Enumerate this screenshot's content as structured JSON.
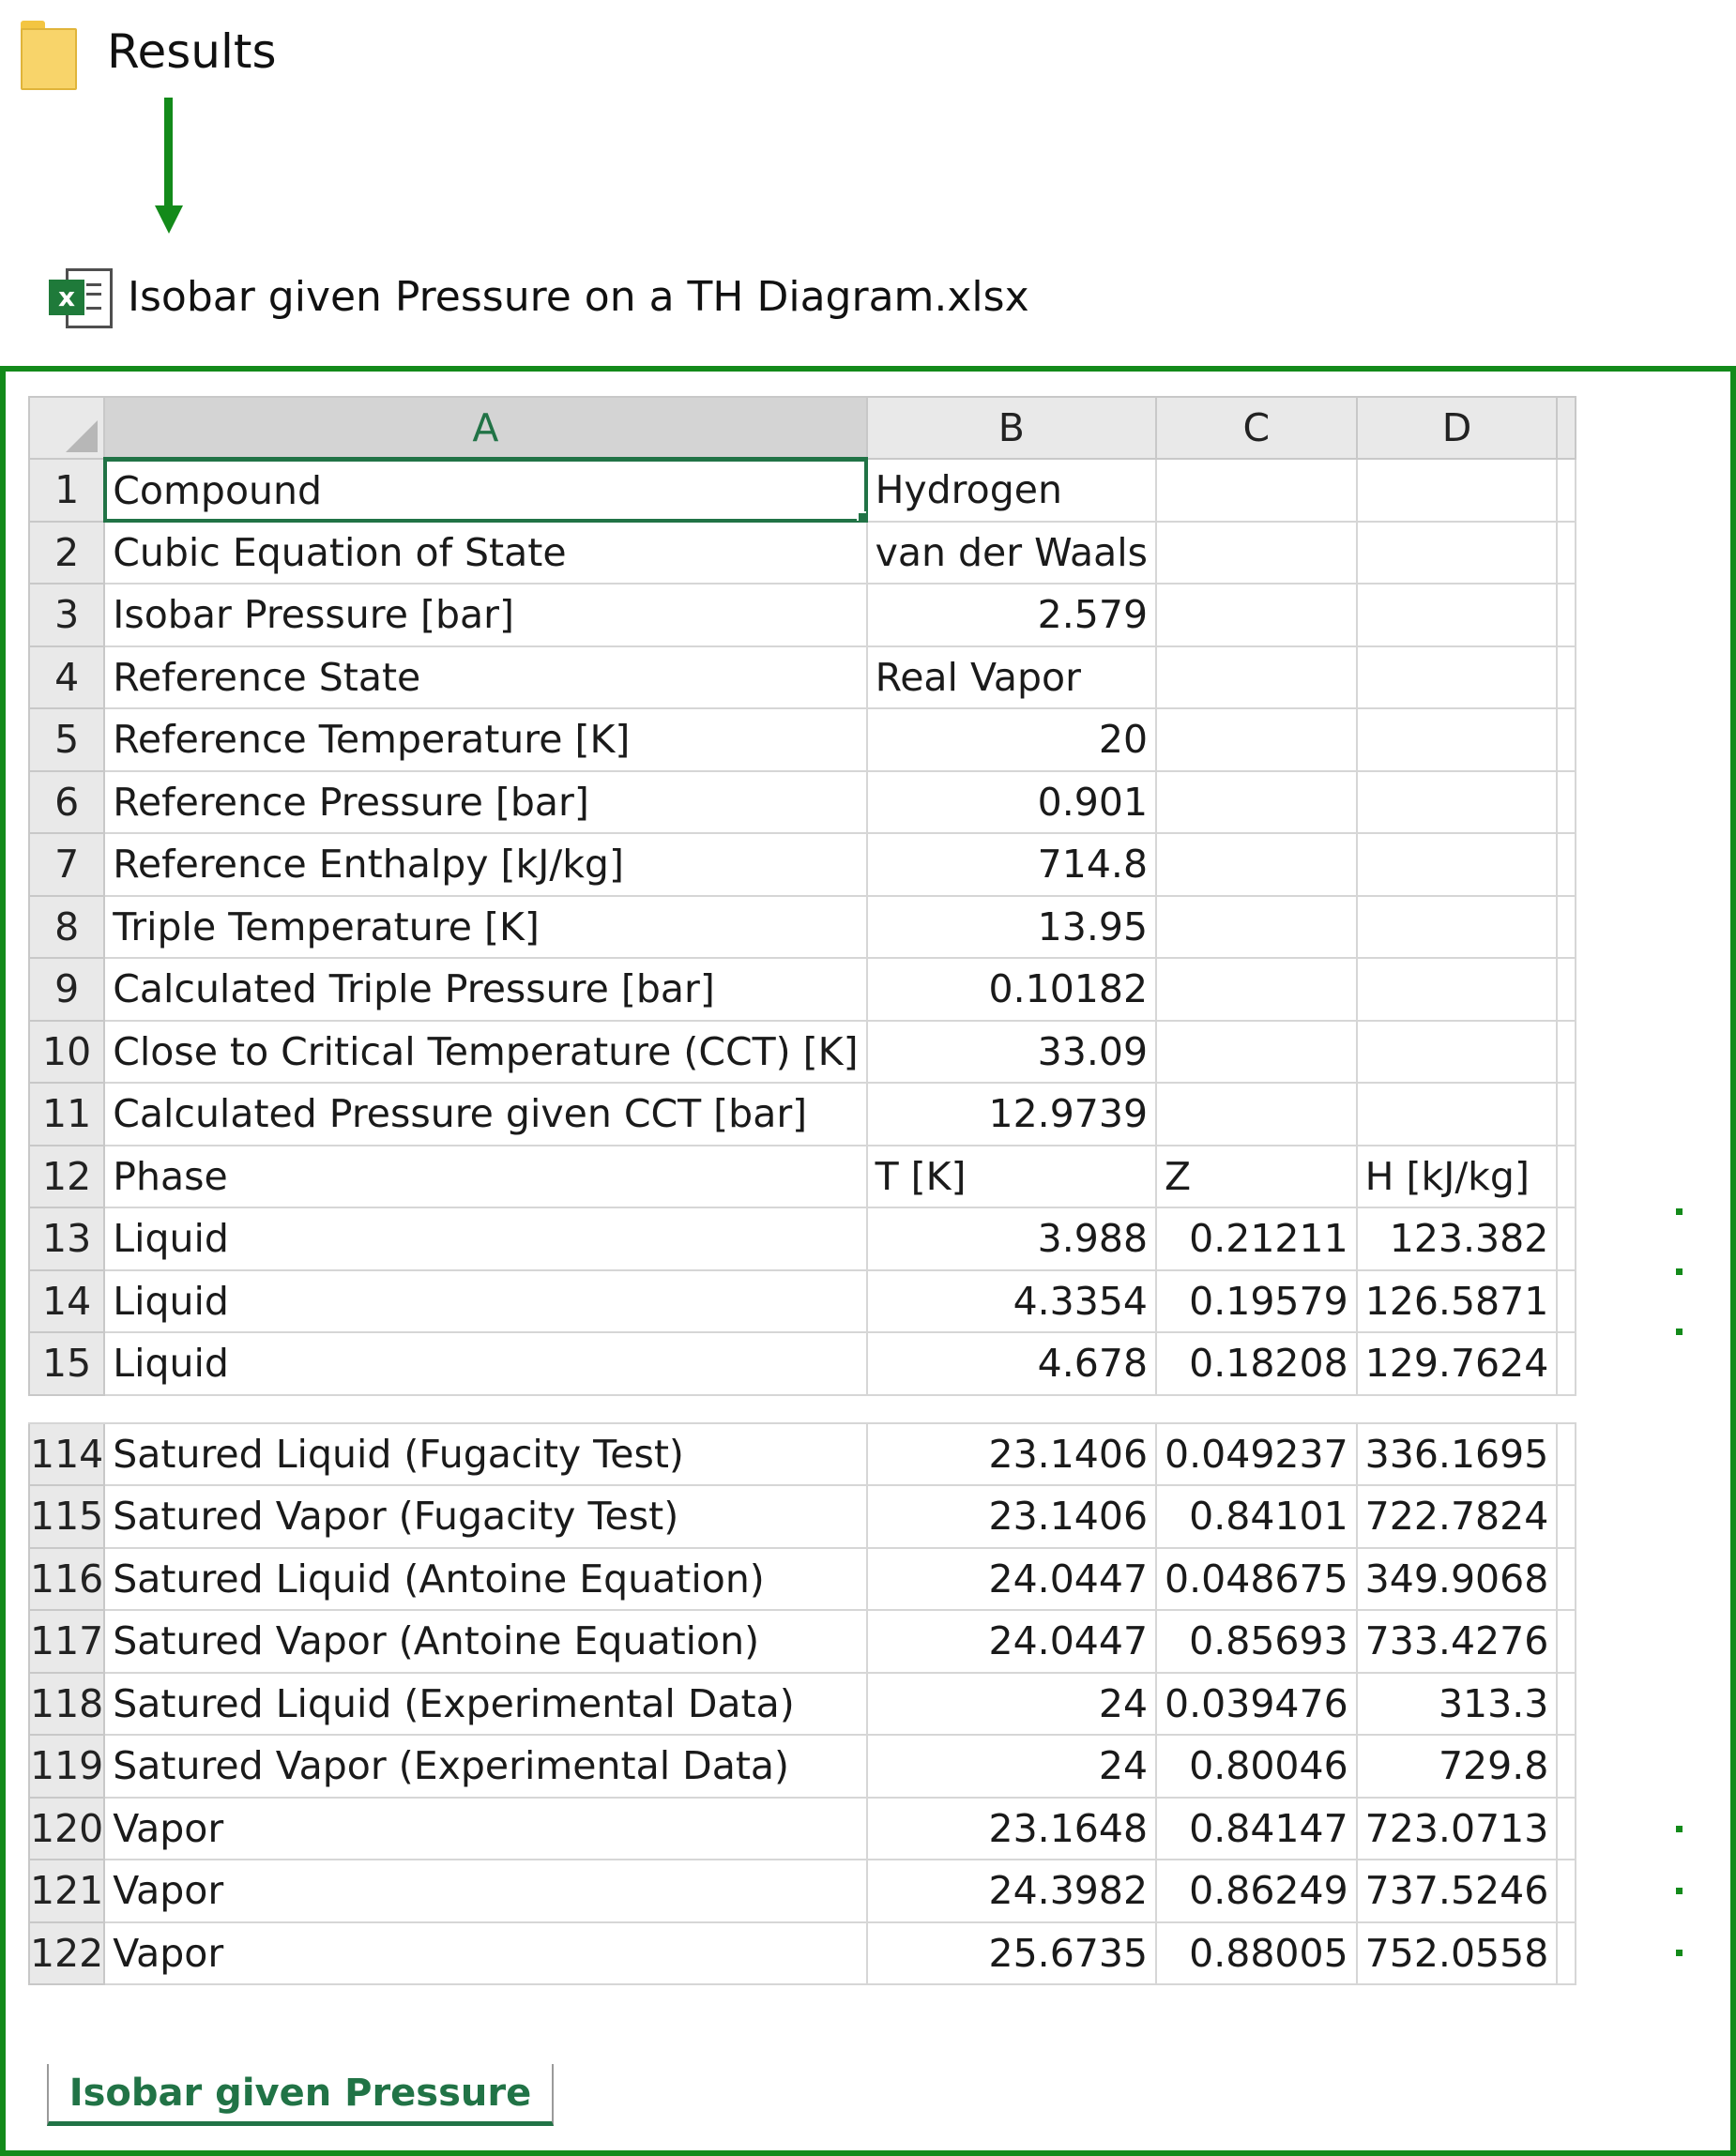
{
  "folder": {
    "label": "Results",
    "icon": "folder-icon"
  },
  "file": {
    "label": "Isobar given Pressure on a TH Diagram.xlsx",
    "icon": "excel-file-icon"
  },
  "spreadsheet": {
    "columns": [
      "A",
      "B",
      "C",
      "D"
    ],
    "rows": [
      {
        "n": "1",
        "a": "Compound",
        "b": "Hydrogen",
        "c": "",
        "d": ""
      },
      {
        "n": "2",
        "a": "Cubic Equation of State",
        "b": "van der Waals",
        "c": "",
        "d": ""
      },
      {
        "n": "3",
        "a": "Isobar Pressure [bar]",
        "b": "2.579",
        "c": "",
        "d": ""
      },
      {
        "n": "4",
        "a": "Reference State",
        "b": "Real Vapor",
        "c": "",
        "d": ""
      },
      {
        "n": "5",
        "a": "Reference Temperature [K]",
        "b": "20",
        "c": "",
        "d": ""
      },
      {
        "n": "6",
        "a": "Reference Pressure [bar]",
        "b": "0.901",
        "c": "",
        "d": ""
      },
      {
        "n": "7",
        "a": "Reference Enthalpy [kJ/kg]",
        "b": "714.8",
        "c": "",
        "d": ""
      },
      {
        "n": "8",
        "a": "Triple Temperature [K]",
        "b": "13.95",
        "c": "",
        "d": ""
      },
      {
        "n": "9",
        "a": "Calculated Triple Pressure [bar]",
        "b": "0.10182",
        "c": "",
        "d": ""
      },
      {
        "n": "10",
        "a": "Close to Critical Temperature (CCT) [K]",
        "b": "33.09",
        "c": "",
        "d": ""
      },
      {
        "n": "11",
        "a": "Calculated Pressure given CCT [bar]",
        "b": "12.9739",
        "c": "",
        "d": ""
      },
      {
        "n": "12",
        "a": "Phase",
        "b": "T [K]",
        "c": "Z",
        "d": "H [kJ/kg]"
      },
      {
        "n": "13",
        "a": "Liquid",
        "b": "3.988",
        "c": "0.21211",
        "d": "123.382"
      },
      {
        "n": "14",
        "a": "Liquid",
        "b": "4.3354",
        "c": "0.19579",
        "d": "126.5871"
      },
      {
        "n": "15",
        "a": "Liquid",
        "b": "4.678",
        "c": "0.18208",
        "d": "129.7624"
      },
      {
        "n": "114",
        "a": "Satured Liquid (Fugacity Test)",
        "b": "23.1406",
        "c": "0.049237",
        "d": "336.1695"
      },
      {
        "n": "115",
        "a": "Satured Vapor (Fugacity Test)",
        "b": "23.1406",
        "c": "0.84101",
        "d": "722.7824"
      },
      {
        "n": "116",
        "a": "Satured Liquid (Antoine Equation)",
        "b": "24.0447",
        "c": "0.048675",
        "d": "349.9068"
      },
      {
        "n": "117",
        "a": "Satured Vapor (Antoine Equation)",
        "b": "24.0447",
        "c": "0.85693",
        "d": "733.4276"
      },
      {
        "n": "118",
        "a": "Satured Liquid (Experimental Data)",
        "b": "24",
        "c": "0.039476",
        "d": "313.3"
      },
      {
        "n": "119",
        "a": "Satured Vapor (Experimental Data)",
        "b": "24",
        "c": "0.80046",
        "d": "729.8"
      },
      {
        "n": "120",
        "a": "Vapor",
        "b": "23.1648",
        "c": "0.84147",
        "d": "723.0713"
      },
      {
        "n": "121",
        "a": "Vapor",
        "b": "24.3982",
        "c": "0.86249",
        "d": "737.5246"
      },
      {
        "n": "122",
        "a": "Vapor",
        "b": "25.6735",
        "c": "0.88005",
        "d": "752.0558"
      }
    ]
  },
  "sheet_tab": {
    "label": "Isobar given Pressure"
  },
  "colors": {
    "accent_green": "#138a1a",
    "excel_green": "#217346",
    "header_gray": "#e9e9e9"
  }
}
